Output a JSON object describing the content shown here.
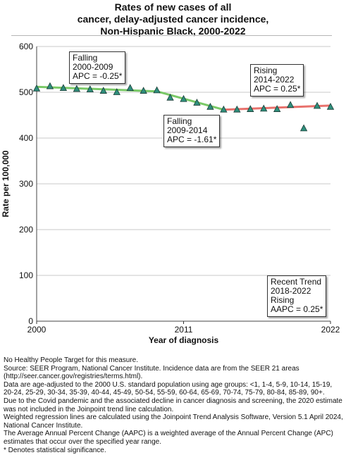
{
  "title": {
    "line1": "Rates of new cases of all",
    "line2": "cancer, delay-adjusted cancer incidence,",
    "line3": "Non-Hispanic Black,  2000-2022"
  },
  "chart_data": {
    "type": "line",
    "xlabel": "Year of diagnosis",
    "ylabel": "Rate per 100,000",
    "xlim": [
      2000,
      2022
    ],
    "ylim": [
      0,
      600
    ],
    "x_ticks": [
      "2000",
      "2011",
      "2022"
    ],
    "y_ticks": [
      "0",
      "100",
      "200",
      "300",
      "400",
      "500",
      "600"
    ],
    "grid": true,
    "observed": {
      "x": [
        2000,
        2001,
        2002,
        2003,
        2004,
        2005,
        2006,
        2007,
        2008,
        2009,
        2010,
        2011,
        2012,
        2013,
        2014,
        2015,
        2016,
        2017,
        2018,
        2019,
        2020,
        2021,
        2022
      ],
      "y": [
        508,
        513,
        509,
        507,
        506,
        503,
        500,
        509,
        503,
        504,
        488,
        485,
        477,
        468,
        462,
        462,
        463,
        464,
        463,
        472,
        421,
        470,
        468
      ]
    },
    "trend_segments": [
      {
        "x": [
          2000,
          2009
        ],
        "y": [
          512,
          502
        ],
        "color": "#7ac967"
      },
      {
        "x": [
          2009,
          2014
        ],
        "y": [
          502,
          462
        ],
        "color": "#7ac967"
      },
      {
        "x": [
          2014,
          2022
        ],
        "y": [
          462,
          471
        ],
        "color": "#e8716c"
      }
    ],
    "annotations": [
      {
        "lines": [
          "Falling",
          "2000-2009",
          "APC = -0.25*"
        ]
      },
      {
        "lines": [
          "Falling",
          "2009-2014",
          "APC = -1.61*"
        ]
      },
      {
        "lines": [
          "Rising",
          "2014-2022",
          "APC =  0.25*"
        ]
      },
      {
        "lines": [
          "Recent Trend",
          "2018-2022",
          "Rising",
          "AAPC =  0.25*"
        ]
      }
    ],
    "colors": {
      "marker_fill": "#2f8f7c",
      "marker_stroke": "#1b3c36",
      "falling_line": "#7ac967",
      "rising_line": "#e8716c",
      "grid": "#c8c8c8"
    }
  },
  "footnotes": [
    "No Healthy People Target for this measure.",
    "Source: SEER Program, National Cancer Institute. Incidence data are from the SEER 21 areas (http://seer.cancer.gov/registries/terms.html).",
    "Data are age-adjusted to the 2000 U.S. standard population using age groups: <1, 1-4, 5-9, 10-14, 15-19, 20-24, 25-29, 30-34, 35-39, 40-44, 45-49, 50-54, 55-59, 60-64, 65-69, 70-74, 75-79, 80-84, 85-89, 90+.",
    "Due to the Covid pandemic and the associated decline in cancer diagnosis and screening, the 2020 estimate was not included in the Joinpoint trend line calculation.",
    "Weighted regression lines are calculated using the Joinpoint Trend Analysis Software, Version 5.1 April 2024, National Cancer Institute.",
    "The Average Annual Percent Change (AAPC) is a weighted average of the Annual Percent Change (APC) estimates that occur over the specified year range.",
    "* Denotes statistical significance."
  ]
}
